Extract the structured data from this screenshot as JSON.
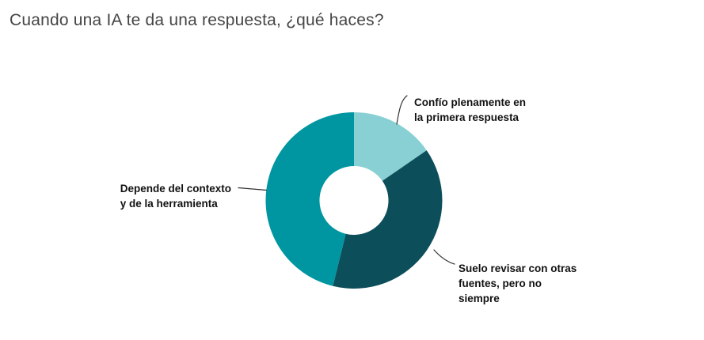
{
  "title": "Cuando una IA te da una respuesta, ¿qué haces?",
  "colors": {
    "background": "#ffffff",
    "title_text": "#454545",
    "label_text": "#111111",
    "connector": "#333333"
  },
  "chart_data": {
    "type": "pie",
    "subtype": "donut",
    "title": "Cuando una IA te da una respuesta, ¿qué haces?",
    "values_are": "percent, estimated from arc angles (no numeric labels shown in image)",
    "start_angle_deg": 0,
    "direction": "clockwise",
    "donut_hole_ratio": 0.39,
    "legend": "none (direct callout labels with connector lines)",
    "segments": [
      {
        "label": "Confío plenamente en la primera respuesta",
        "label_display": "Confío plenamente en\nla primera respuesta",
        "value": 15.4,
        "angle_deg": 55,
        "color": "#89d0d4"
      },
      {
        "label": "Suelo revisar con otras fuentes, pero no siempre",
        "label_display": "Suelo revisar con otras\nfuentes, pero no\nsiempre",
        "value": 38.5,
        "angle_deg": 138,
        "color": "#0c4f5a"
      },
      {
        "label": "Depende del contexto y de la herramienta",
        "label_display": "Depende del contexto\ny de la herramienta",
        "value": 46.2,
        "angle_deg": 167,
        "color": "#0096a1"
      }
    ]
  }
}
